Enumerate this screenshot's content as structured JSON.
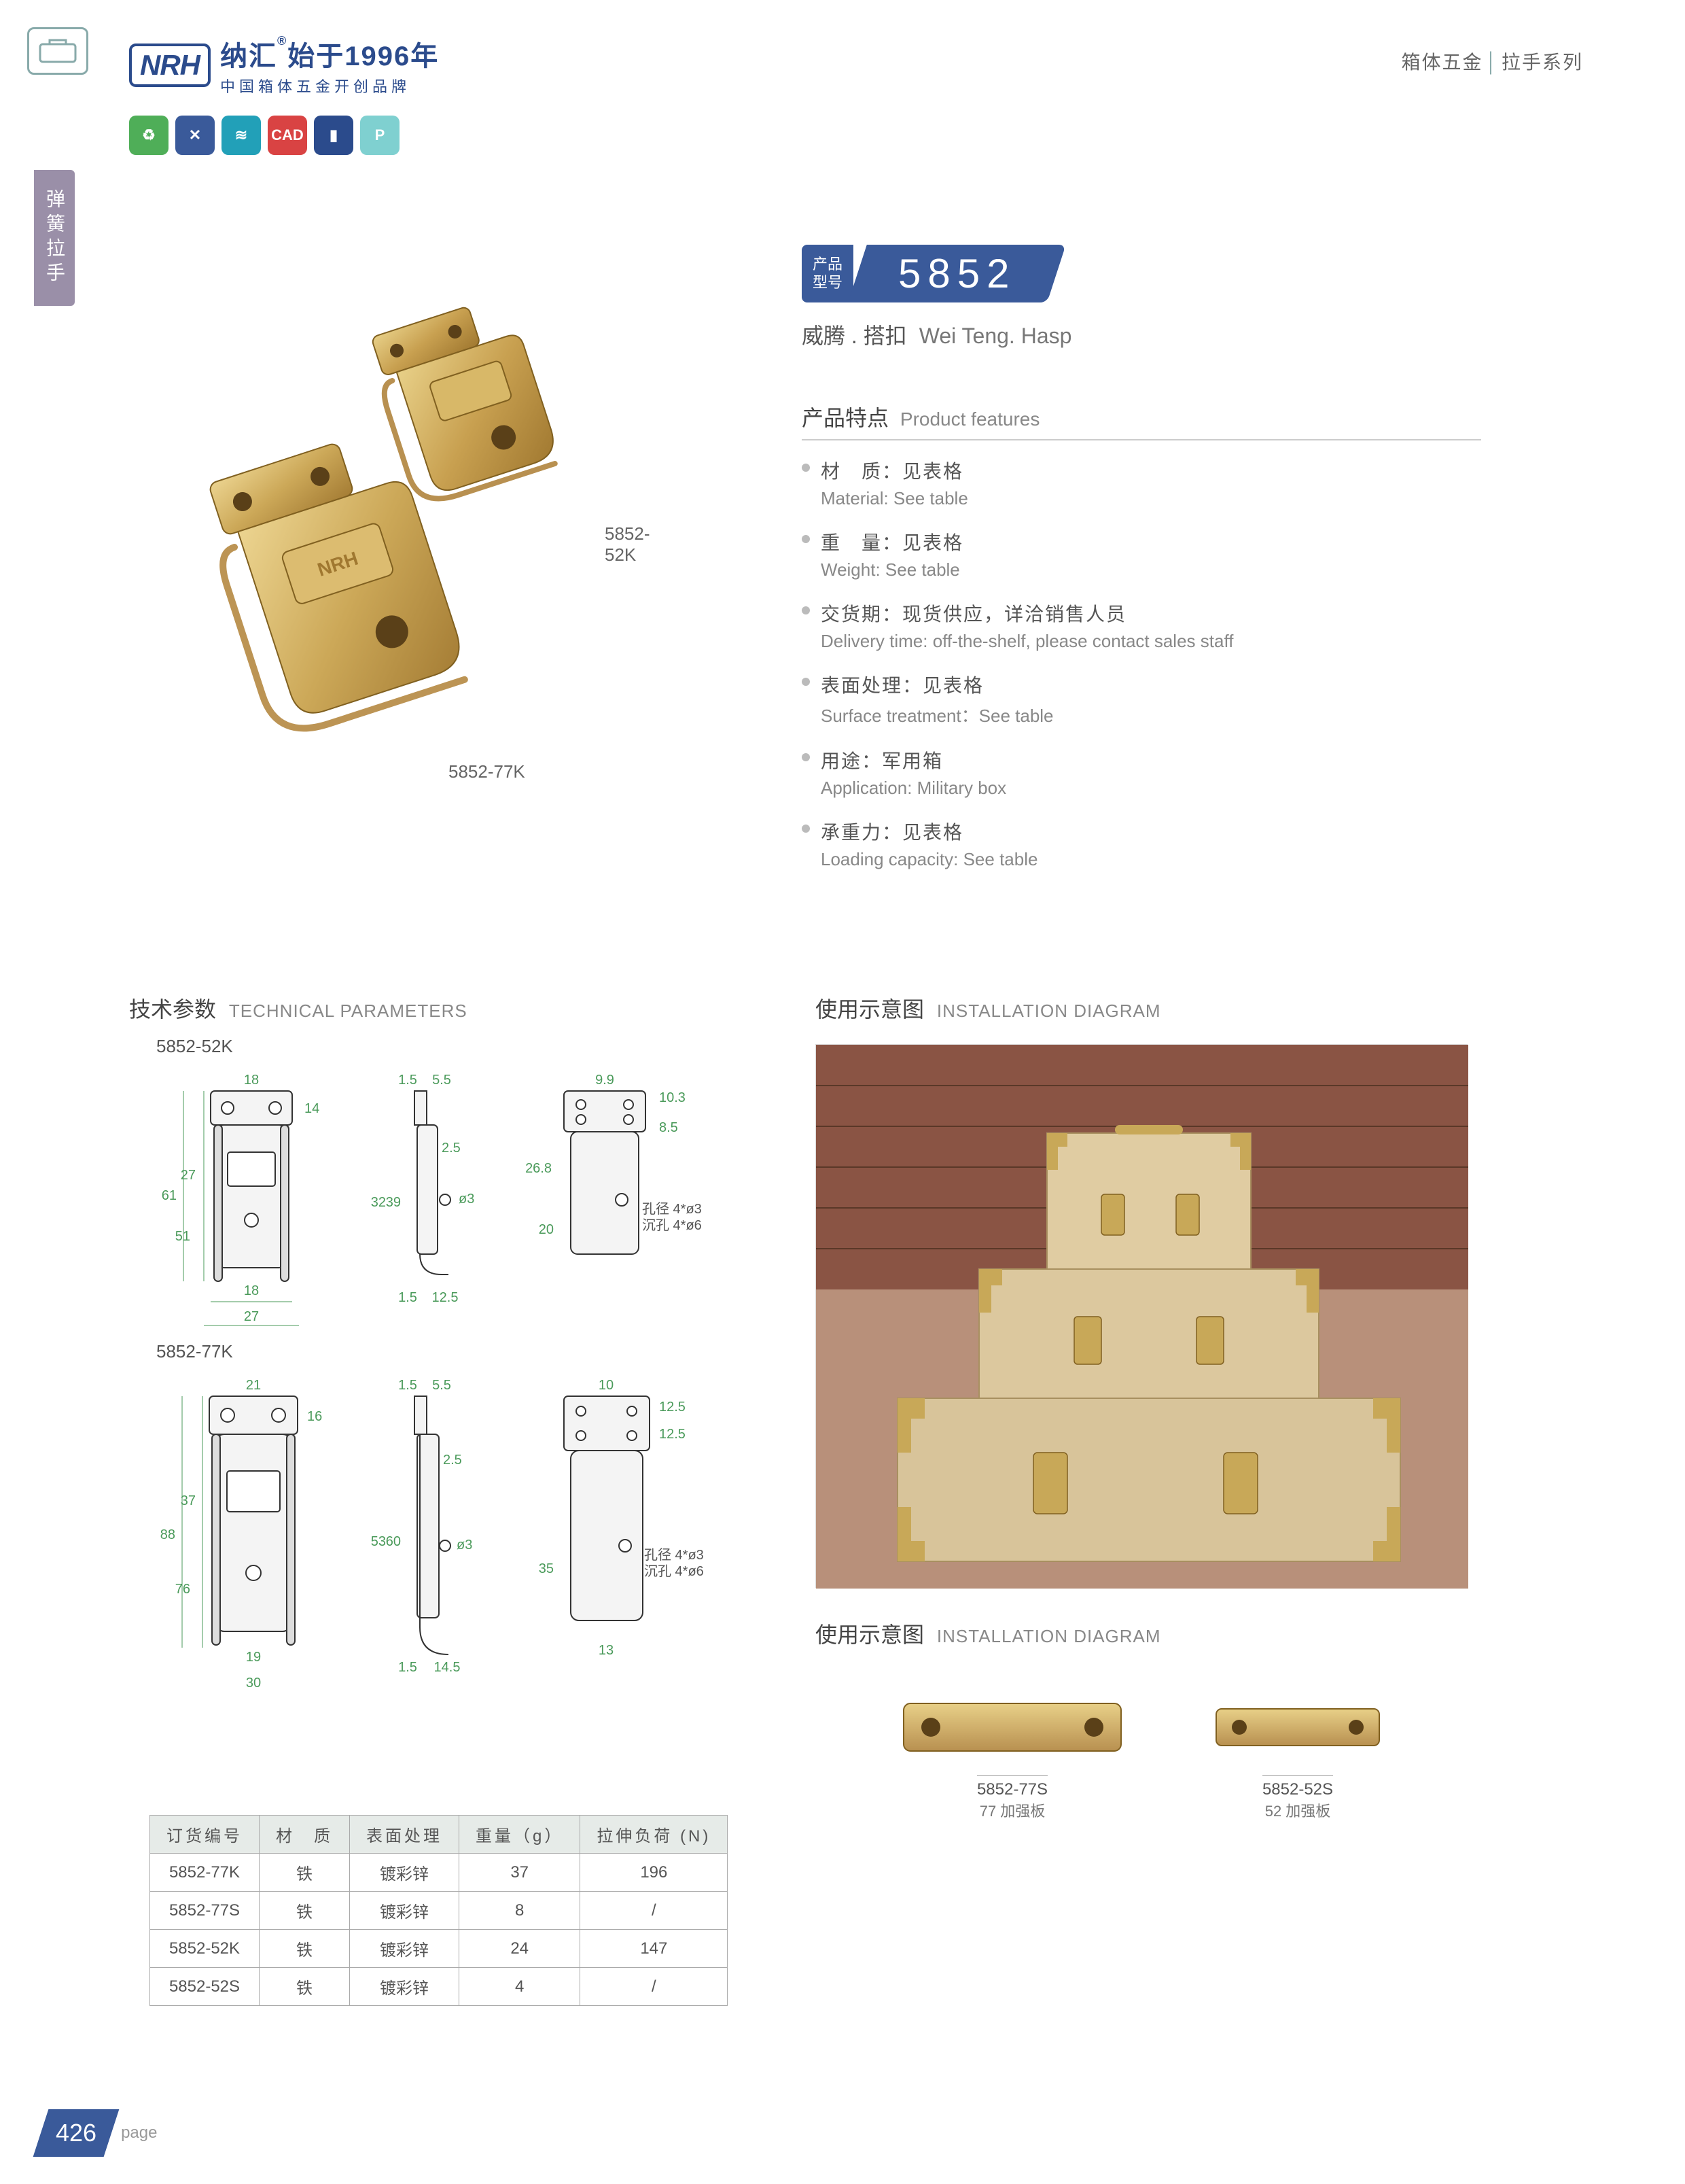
{
  "header": {
    "logo_text": "NRH",
    "brand_cn": "纳汇",
    "brand_year": "始于1996年",
    "brand_sub": "中国箱体五金开创品牌",
    "reg_mark": "®",
    "right_cn1": "箱体五金",
    "right_cn2": "拉手系列"
  },
  "side_tab": "弹簧拉手",
  "icon_colors": [
    "#4fae58",
    "#3a5a9a",
    "#22a0b8",
    "#d94343",
    "#2b4b8c",
    "#7fd0d0"
  ],
  "icon_glyphs": [
    "♻",
    "✕",
    "≋",
    "CAD",
    "▮",
    "P"
  ],
  "model": {
    "badge_label_1": "产品",
    "badge_label_2": "型号",
    "number": "5852",
    "sub_cn": "威腾 . 搭扣",
    "sub_en": "Wei Teng. Hasp"
  },
  "product_labels": {
    "a": "5852-52K",
    "b": "5852-77K"
  },
  "features": {
    "title_cn": "产品特点",
    "title_en": "Product features",
    "items": [
      {
        "cn": "材　质：见表格",
        "en": "Material: See table"
      },
      {
        "cn": "重　量：见表格",
        "en": "Weight: See table"
      },
      {
        "cn": "交货期：现货供应，详洽销售人员",
        "en": "Delivery time: off-the-shelf, please contact sales staff"
      },
      {
        "cn": "表面处理：见表格",
        "en": "Surface treatment：See table"
      },
      {
        "cn": "用途：军用箱",
        "en": "Application: Military box"
      },
      {
        "cn": "承重力：见表格",
        "en": "Loading capacity: See table"
      }
    ]
  },
  "tech": {
    "title_cn": "技术参数",
    "title_en": "TECHNICAL PARAMETERS",
    "sub_a": "5852-52K",
    "sub_b": "5852-77K",
    "dims_a": {
      "front": {
        "w_top": "18",
        "h_top": "14",
        "h_mid": "27",
        "h_total": "61",
        "h_body": "51",
        "w_bot": "18",
        "w_total": "27"
      },
      "side": {
        "t": "1.5",
        "off": "5.5",
        "h": "39",
        "sh": "32",
        "gap": "2.5",
        "bot": "12.5",
        "d": "ø3"
      },
      "back": {
        "w": "9.9",
        "ht": "10.3",
        "h": "26.8",
        "sh": "8.5",
        "b": "20",
        "note1": "孔径 4*ø3",
        "note2": "沉孔 4*ø6"
      }
    },
    "dims_b": {
      "front": {
        "w_top": "21",
        "h_top": "16",
        "h_mid": "37",
        "h_total": "88",
        "h_body": "76",
        "w_bot": "19",
        "w_total": "30"
      },
      "side": {
        "t": "1.5",
        "off": "5.5",
        "h": "60",
        "sh": "53",
        "gap": "2.5",
        "bot": "14.5",
        "d": "ø3"
      },
      "back": {
        "w": "10",
        "ht": "12.5",
        "h": "12.5",
        "b": "35",
        "bb": "13",
        "note1": "孔径 4*ø3",
        "note2": "沉孔 4*ø6"
      }
    }
  },
  "install": {
    "title_cn": "使用示意图",
    "title_en": "INSTALLATION DIAGRAM"
  },
  "plates": {
    "title_cn": "使用示意图",
    "title_en": "INSTALLATION DIAGRAM",
    "items": [
      {
        "code": "5852-77S",
        "name": "77 加强板"
      },
      {
        "code": "5852-52S",
        "name": "52 加强板"
      }
    ]
  },
  "table": {
    "headers": [
      "订货编号",
      "材　质",
      "表面处理",
      "重量（g）",
      "拉伸负荷 (N)"
    ],
    "rows": [
      [
        "5852-77K",
        "铁",
        "镀彩锌",
        "37",
        "196"
      ],
      [
        "5852-77S",
        "铁",
        "镀彩锌",
        "8",
        "/"
      ],
      [
        "5852-52K",
        "铁",
        "镀彩锌",
        "24",
        "147"
      ],
      [
        "5852-52S",
        "铁",
        "镀彩锌",
        "4",
        "/"
      ]
    ]
  },
  "footer": {
    "page": "426",
    "word": "page"
  },
  "colors": {
    "brand_blue": "#3a5a9a",
    "dim_green": "#4a9a5a"
  }
}
